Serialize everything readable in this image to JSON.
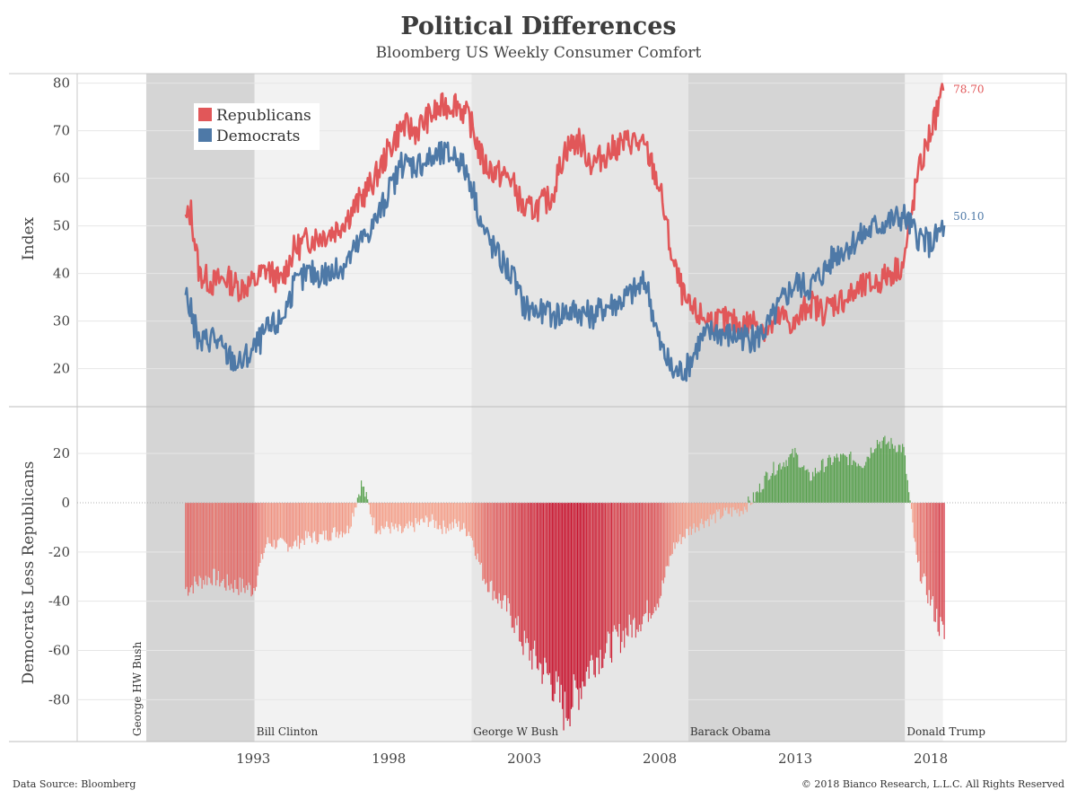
{
  "title": "Political Differences",
  "subtitle": "Bloomberg US Weekly Consumer Comfort",
  "footer": {
    "source": "Data Source: Bloomberg",
    "copyright": "© 2018 Bianco Research, L.L.C. All Rights Reserved"
  },
  "colors": {
    "republicans": "#e15759",
    "democrats": "#4e79a7",
    "positive_diff": "#59a14f"
  },
  "chart_data": [
    {
      "type": "line",
      "title": "Political Differences",
      "subtitle": "Bloomberg US Weekly Consumer Comfort",
      "ylabel": "Index",
      "xlabel": "",
      "xlim": [
        1986.5,
        2023
      ],
      "ylim": [
        12,
        82
      ],
      "yticks": [
        20,
        30,
        40,
        50,
        60,
        70,
        80
      ],
      "xticks": [
        1993,
        1998,
        2003,
        2008,
        2013,
        2018
      ],
      "legend": [
        "Republicans",
        "Democrats"
      ],
      "legend_position": "top-left",
      "end_labels": {
        "republicans": "78.70",
        "democrats": "50.10"
      },
      "series": [
        {
          "name": "Republicans",
          "x": [
            1990.5,
            1990.7,
            1991.0,
            1991.5,
            1992.0,
            1992.5,
            1993.0,
            1993.5,
            1994.0,
            1994.5,
            1995.0,
            1995.5,
            1996.0,
            1996.5,
            1997.0,
            1997.5,
            1998.0,
            1998.5,
            1999.0,
            1999.5,
            2000.0,
            2000.5,
            2001.0,
            2001.5,
            2002.0,
            2002.5,
            2003.0,
            2003.5,
            2004.0,
            2004.5,
            2005.0,
            2005.5,
            2006.0,
            2006.5,
            2007.0,
            2007.5,
            2008.0,
            2008.5,
            2009.0,
            2009.5,
            2010.0,
            2010.5,
            2011.0,
            2011.5,
            2012.0,
            2012.5,
            2013.0,
            2013.5,
            2014.0,
            2014.5,
            2015.0,
            2015.5,
            2016.0,
            2016.5,
            2017.0,
            2017.5,
            2018.0,
            2018.5
          ],
          "values": [
            51,
            53,
            40,
            38,
            39,
            37,
            38,
            41,
            38,
            45,
            47,
            48,
            49,
            52,
            56,
            60,
            66,
            71,
            70,
            73,
            75,
            76,
            72,
            63,
            61,
            60,
            53,
            54,
            56,
            66,
            68,
            63,
            65,
            67,
            68,
            66,
            58,
            42,
            33,
            31,
            30,
            30,
            29,
            30,
            28,
            31,
            29,
            34,
            32,
            34,
            35,
            37,
            38,
            40,
            42,
            60,
            70,
            78.7
          ]
        },
        {
          "name": "Democrats",
          "x": [
            1990.5,
            1990.7,
            1991.0,
            1991.5,
            1992.0,
            1992.5,
            1993.0,
            1993.5,
            1994.0,
            1994.5,
            1995.0,
            1995.5,
            1996.0,
            1996.5,
            1997.0,
            1997.5,
            1998.0,
            1998.5,
            1999.0,
            1999.5,
            2000.0,
            2000.5,
            2001.0,
            2001.5,
            2002.0,
            2002.5,
            2003.0,
            2003.5,
            2004.0,
            2004.5,
            2005.0,
            2005.5,
            2006.0,
            2006.5,
            2007.0,
            2007.5,
            2008.0,
            2008.5,
            2009.0,
            2009.5,
            2010.0,
            2010.5,
            2011.0,
            2011.5,
            2012.0,
            2012.5,
            2013.0,
            2013.5,
            2014.0,
            2014.5,
            2015.0,
            2015.5,
            2016.0,
            2016.5,
            2017.0,
            2017.5,
            2018.0,
            2018.5
          ],
          "values": [
            36,
            32,
            25,
            27,
            23,
            21,
            24,
            28,
            30,
            37,
            40,
            40,
            40,
            43,
            47,
            51,
            57,
            63,
            63,
            64,
            65,
            65,
            60,
            49,
            44,
            40,
            33,
            32,
            31,
            32,
            32,
            31,
            33,
            34,
            36,
            38,
            25,
            19,
            20,
            26,
            28,
            27,
            27,
            26,
            29,
            34,
            38,
            37,
            40,
            44,
            46,
            48,
            50,
            51,
            52,
            48,
            46,
            50.1
          ]
        }
      ],
      "shading": [
        {
          "label": "George HW Bush",
          "start": 1989.05,
          "end": 1993.05
        },
        {
          "label": "Bill Clinton",
          "start": 1993.05,
          "end": 2001.05
        },
        {
          "label": "George W Bush",
          "start": 2001.05,
          "end": 2009.05
        },
        {
          "label": "Barack Obama",
          "start": 2009.05,
          "end": 2017.05
        },
        {
          "label": "Donald Trump",
          "start": 2017.05,
          "end": 2018.45
        }
      ]
    },
    {
      "type": "bar",
      "title": "Democrats Less Republicans",
      "ylabel": "Democrats Less Republicans",
      "xlabel": "",
      "ylim": [
        -97,
        39
      ],
      "yticks": [
        20,
        0,
        -20,
        -40,
        -60,
        -80
      ],
      "xticks": [
        1993,
        1998,
        2003,
        2008,
        2013,
        2018
      ],
      "series": [
        {
          "name": "Democrats Less Republicans",
          "x": [
            1990.5,
            1991.0,
            1991.5,
            1992.0,
            1992.5,
            1993.0,
            1993.5,
            1994.0,
            1994.5,
            1995.0,
            1995.5,
            1996.0,
            1996.5,
            1997.0,
            1997.5,
            1998.0,
            1998.5,
            1999.0,
            1999.5,
            2000.0,
            2000.5,
            2001.0,
            2001.5,
            2002.0,
            2002.5,
            2003.0,
            2003.5,
            2004.0,
            2004.5,
            2005.0,
            2005.5,
            2006.0,
            2006.5,
            2007.0,
            2007.5,
            2008.0,
            2008.5,
            2009.0,
            2009.5,
            2010.0,
            2010.5,
            2011.0,
            2011.5,
            2012.0,
            2012.5,
            2013.0,
            2013.5,
            2014.0,
            2014.5,
            2015.0,
            2015.5,
            2016.0,
            2016.5,
            2017.0,
            2017.5,
            2018.0,
            2018.5
          ],
          "values": [
            -35,
            -32,
            -30,
            -33,
            -34,
            -35,
            -16,
            -17,
            -17,
            -14,
            -14,
            -12,
            -11,
            8,
            -10,
            -10,
            -12,
            -9,
            -7,
            -10,
            -9,
            -12,
            -30,
            -38,
            -45,
            -58,
            -65,
            -72,
            -85,
            -76,
            -64,
            -60,
            -55,
            -50,
            -45,
            -38,
            -18,
            -12,
            -8,
            -6,
            -4,
            -3,
            2,
            12,
            16,
            20,
            10,
            15,
            18,
            18,
            16,
            25,
            24,
            22,
            -25,
            -40,
            -55
          ]
        }
      ]
    }
  ]
}
